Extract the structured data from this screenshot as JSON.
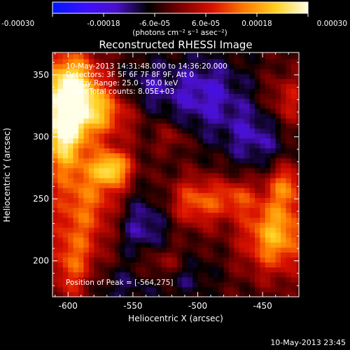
{
  "colorbar": {
    "ticks": [
      "-0.00030",
      "-0.00018",
      "-6.0e-05",
      "6.0e-05",
      "0.00018",
      "0.00030"
    ],
    "unit_label": "(photons cm⁻² s⁻¹ asec⁻²)",
    "colors": [
      "#0018ff",
      "#3b10ff",
      "#4a10c8",
      "#000000",
      "#7a0000",
      "#d81000",
      "#ff7a00",
      "#ffd020",
      "#ffffe8"
    ]
  },
  "title": "Reconstructed RHESSI Image",
  "annotations": {
    "time": "10-May-2013 14:31:48.000 to 14:36:20.000",
    "detectors": "Detectors: 3F 5F 6F 7F 8F 9F, Att 0",
    "energy": "Energy Range: 25.0 - 50.0 keV",
    "clean": "Clean    Total counts: 8.05E+03",
    "peak": "Position of Peak = [-564,275]"
  },
  "footer": "10-May-2013 23:45",
  "chart_data": {
    "type": "heatmap",
    "title": "Reconstructed RHESSI Image",
    "xlabel": "Heliocentric X (arcsec)",
    "ylabel": "Heliocentric Y (arcsec)",
    "xlim": [
      -612,
      -422
    ],
    "ylim": [
      171,
      368
    ],
    "x_ticks": [
      -600,
      -550,
      -500,
      -450
    ],
    "y_ticks": [
      200,
      250,
      300,
      350
    ],
    "peak": {
      "x": -564,
      "y": 275
    },
    "colorbar_range": [
      -0.0003,
      0.0003
    ],
    "colorbar_tick_values": [
      -0.0003,
      -0.00018,
      -6e-05,
      6e-05,
      0.00018,
      0.0003
    ],
    "grid_resolution": 4,
    "blobs": [
      {
        "x": -598,
        "y": 342,
        "sx": 16,
        "sy": 20,
        "a": 0.00029
      },
      {
        "x": -604,
        "y": 305,
        "sx": 12,
        "sy": 22,
        "a": 0.00028
      },
      {
        "x": -575,
        "y": 320,
        "sx": 18,
        "sy": 14,
        "a": 0.00018
      },
      {
        "x": -585,
        "y": 250,
        "sx": 22,
        "sy": 30,
        "a": 0.00017
      },
      {
        "x": -566,
        "y": 275,
        "sx": 10,
        "sy": 10,
        "a": 0.00022
      },
      {
        "x": -597,
        "y": 195,
        "sx": 12,
        "sy": 22,
        "a": 0.00014
      },
      {
        "x": -500,
        "y": 248,
        "sx": 16,
        "sy": 14,
        "a": 0.00017
      },
      {
        "x": -470,
        "y": 252,
        "sx": 10,
        "sy": 10,
        "a": 0.00011
      },
      {
        "x": -440,
        "y": 222,
        "sx": 18,
        "sy": 22,
        "a": 0.00024
      },
      {
        "x": -432,
        "y": 262,
        "sx": 10,
        "sy": 12,
        "a": 0.00015
      },
      {
        "x": -430,
        "y": 328,
        "sx": 12,
        "sy": 16,
        "a": 0.00011
      },
      {
        "x": -525,
        "y": 198,
        "sx": 14,
        "sy": 10,
        "a": 0.0001
      },
      {
        "x": -520,
        "y": 300,
        "sx": 8,
        "sy": 8,
        "a": 8e-05
      },
      {
        "x": -545,
        "y": 230,
        "sx": 16,
        "sy": 20,
        "a": -0.00012
      },
      {
        "x": -495,
        "y": 335,
        "sx": 22,
        "sy": 22,
        "a": -0.00012
      },
      {
        "x": -540,
        "y": 340,
        "sx": 14,
        "sy": 14,
        "a": -8e-05
      },
      {
        "x": -455,
        "y": 300,
        "sx": 18,
        "sy": 18,
        "a": -0.0001
      },
      {
        "x": -510,
        "y": 190,
        "sx": 14,
        "sy": 12,
        "a": -8e-05
      },
      {
        "x": -560,
        "y": 180,
        "sx": 20,
        "sy": 12,
        "a": -6e-05
      }
    ]
  }
}
